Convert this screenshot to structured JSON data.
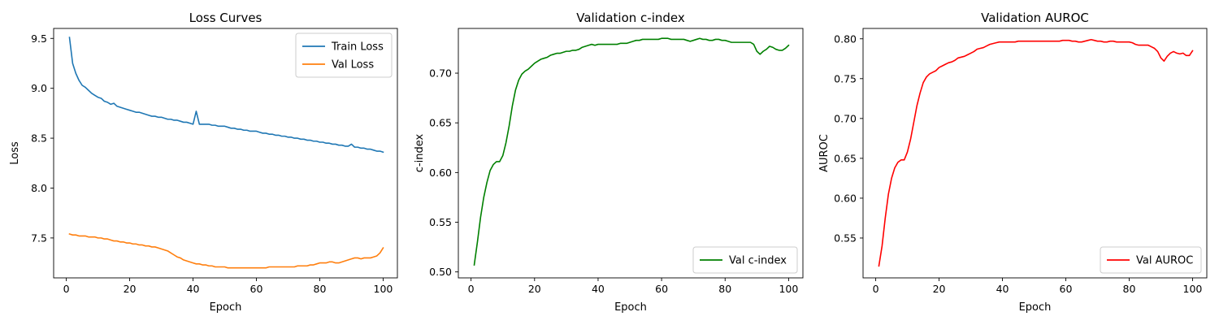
{
  "chart_data": [
    {
      "type": "line",
      "title": "Loss Curves",
      "xlabel": "Epoch",
      "ylabel": "Loss",
      "xlim": [
        -4,
        104.5
      ],
      "ylim": [
        7.1,
        9.6
      ],
      "xticks": [
        0,
        20,
        40,
        60,
        80,
        100
      ],
      "yticks": [
        7.5,
        8.0,
        8.5,
        9.0,
        9.5
      ],
      "ytick_labels": [
        "7.5",
        "8.0",
        "8.5",
        "9.0",
        "9.5"
      ],
      "grid": false,
      "legend": "top-right",
      "series": [
        {
          "name": "Train Loss",
          "color": "#1f77b4",
          "x_start": 1,
          "values": [
            9.51,
            9.25,
            9.15,
            9.08,
            9.03,
            9.01,
            8.98,
            8.95,
            8.93,
            8.91,
            8.9,
            8.87,
            8.86,
            8.84,
            8.85,
            8.82,
            8.81,
            8.8,
            8.79,
            8.78,
            8.77,
            8.76,
            8.76,
            8.75,
            8.74,
            8.73,
            8.72,
            8.72,
            8.71,
            8.71,
            8.7,
            8.69,
            8.69,
            8.68,
            8.68,
            8.67,
            8.66,
            8.66,
            8.65,
            8.64,
            8.77,
            8.64,
            8.64,
            8.64,
            8.64,
            8.63,
            8.63,
            8.62,
            8.62,
            8.62,
            8.61,
            8.6,
            8.6,
            8.59,
            8.59,
            8.58,
            8.58,
            8.57,
            8.57,
            8.57,
            8.56,
            8.55,
            8.55,
            8.54,
            8.54,
            8.53,
            8.53,
            8.52,
            8.52,
            8.51,
            8.51,
            8.5,
            8.5,
            8.49,
            8.49,
            8.48,
            8.48,
            8.47,
            8.47,
            8.46,
            8.46,
            8.45,
            8.45,
            8.44,
            8.44,
            8.43,
            8.43,
            8.42,
            8.42,
            8.44,
            8.41,
            8.41,
            8.4,
            8.4,
            8.39,
            8.39,
            8.38,
            8.37,
            8.37,
            8.36
          ]
        },
        {
          "name": "Val Loss",
          "color": "#ff7f0e",
          "x_start": 1,
          "values": [
            7.54,
            7.53,
            7.53,
            7.52,
            7.52,
            7.52,
            7.51,
            7.51,
            7.51,
            7.5,
            7.5,
            7.49,
            7.49,
            7.48,
            7.47,
            7.47,
            7.46,
            7.46,
            7.45,
            7.45,
            7.44,
            7.44,
            7.43,
            7.43,
            7.42,
            7.42,
            7.41,
            7.41,
            7.4,
            7.39,
            7.38,
            7.37,
            7.35,
            7.33,
            7.31,
            7.3,
            7.28,
            7.27,
            7.26,
            7.25,
            7.24,
            7.24,
            7.23,
            7.23,
            7.22,
            7.22,
            7.21,
            7.21,
            7.21,
            7.21,
            7.2,
            7.2,
            7.2,
            7.2,
            7.2,
            7.2,
            7.2,
            7.2,
            7.2,
            7.2,
            7.2,
            7.2,
            7.2,
            7.21,
            7.21,
            7.21,
            7.21,
            7.21,
            7.21,
            7.21,
            7.21,
            7.21,
            7.22,
            7.22,
            7.22,
            7.22,
            7.23,
            7.23,
            7.24,
            7.25,
            7.25,
            7.25,
            7.26,
            7.26,
            7.25,
            7.25,
            7.26,
            7.27,
            7.28,
            7.29,
            7.3,
            7.3,
            7.29,
            7.3,
            7.3,
            7.3,
            7.31,
            7.32,
            7.35,
            7.4
          ]
        }
      ]
    },
    {
      "type": "line",
      "title": "Validation c-index",
      "xlabel": "Epoch",
      "ylabel": "c-index",
      "xlim": [
        -4,
        104.5
      ],
      "ylim": [
        0.494,
        0.745
      ],
      "xticks": [
        0,
        20,
        40,
        60,
        80,
        100
      ],
      "yticks": [
        0.5,
        0.55,
        0.6,
        0.65,
        0.7
      ],
      "ytick_labels": [
        "0.50",
        "0.55",
        "0.60",
        "0.65",
        "0.70"
      ],
      "grid": false,
      "legend": "bottom-right",
      "series": [
        {
          "name": "Val c-index",
          "color": "#008000",
          "x_start": 1,
          "values": [
            0.507,
            0.53,
            0.555,
            0.575,
            0.59,
            0.602,
            0.608,
            0.611,
            0.611,
            0.617,
            0.63,
            0.647,
            0.667,
            0.683,
            0.693,
            0.699,
            0.702,
            0.704,
            0.707,
            0.71,
            0.712,
            0.714,
            0.715,
            0.716,
            0.718,
            0.719,
            0.72,
            0.72,
            0.721,
            0.722,
            0.722,
            0.723,
            0.723,
            0.724,
            0.726,
            0.727,
            0.728,
            0.729,
            0.728,
            0.729,
            0.729,
            0.729,
            0.729,
            0.729,
            0.729,
            0.729,
            0.73,
            0.73,
            0.73,
            0.731,
            0.732,
            0.733,
            0.733,
            0.734,
            0.734,
            0.734,
            0.734,
            0.734,
            0.734,
            0.735,
            0.735,
            0.735,
            0.734,
            0.734,
            0.734,
            0.734,
            0.734,
            0.733,
            0.732,
            0.733,
            0.734,
            0.735,
            0.734,
            0.734,
            0.733,
            0.733,
            0.734,
            0.734,
            0.733,
            0.733,
            0.732,
            0.731,
            0.731,
            0.731,
            0.731,
            0.731,
            0.731,
            0.731,
            0.729,
            0.722,
            0.719,
            0.722,
            0.724,
            0.727,
            0.726,
            0.724,
            0.723,
            0.723,
            0.725,
            0.728
          ]
        }
      ]
    },
    {
      "type": "line",
      "title": "Validation AUROC",
      "xlabel": "Epoch",
      "ylabel": "AUROC",
      "xlim": [
        -4,
        104.5
      ],
      "ylim": [
        0.5,
        0.813
      ],
      "xticks": [
        0,
        20,
        40,
        60,
        80,
        100
      ],
      "yticks": [
        0.55,
        0.6,
        0.65,
        0.7,
        0.75,
        0.8
      ],
      "ytick_labels": [
        "0.55",
        "0.60",
        "0.65",
        "0.70",
        "0.75",
        "0.80"
      ],
      "grid": false,
      "legend": "bottom-right",
      "series": [
        {
          "name": "Val AUROC",
          "color": "#ff0000",
          "x_start": 1,
          "values": [
            0.515,
            0.54,
            0.575,
            0.605,
            0.625,
            0.638,
            0.645,
            0.648,
            0.648,
            0.658,
            0.674,
            0.695,
            0.716,
            0.732,
            0.745,
            0.752,
            0.756,
            0.758,
            0.76,
            0.764,
            0.766,
            0.768,
            0.77,
            0.771,
            0.773,
            0.776,
            0.777,
            0.778,
            0.78,
            0.782,
            0.784,
            0.787,
            0.788,
            0.789,
            0.791,
            0.793,
            0.794,
            0.795,
            0.796,
            0.796,
            0.796,
            0.796,
            0.796,
            0.796,
            0.797,
            0.797,
            0.797,
            0.797,
            0.797,
            0.797,
            0.797,
            0.797,
            0.797,
            0.797,
            0.797,
            0.797,
            0.797,
            0.797,
            0.798,
            0.798,
            0.798,
            0.797,
            0.797,
            0.796,
            0.796,
            0.797,
            0.798,
            0.799,
            0.798,
            0.797,
            0.797,
            0.796,
            0.796,
            0.797,
            0.797,
            0.796,
            0.796,
            0.796,
            0.796,
            0.796,
            0.795,
            0.793,
            0.792,
            0.792,
            0.792,
            0.792,
            0.79,
            0.788,
            0.784,
            0.776,
            0.772,
            0.778,
            0.782,
            0.784,
            0.782,
            0.781,
            0.782,
            0.779,
            0.779,
            0.785
          ]
        }
      ]
    }
  ]
}
